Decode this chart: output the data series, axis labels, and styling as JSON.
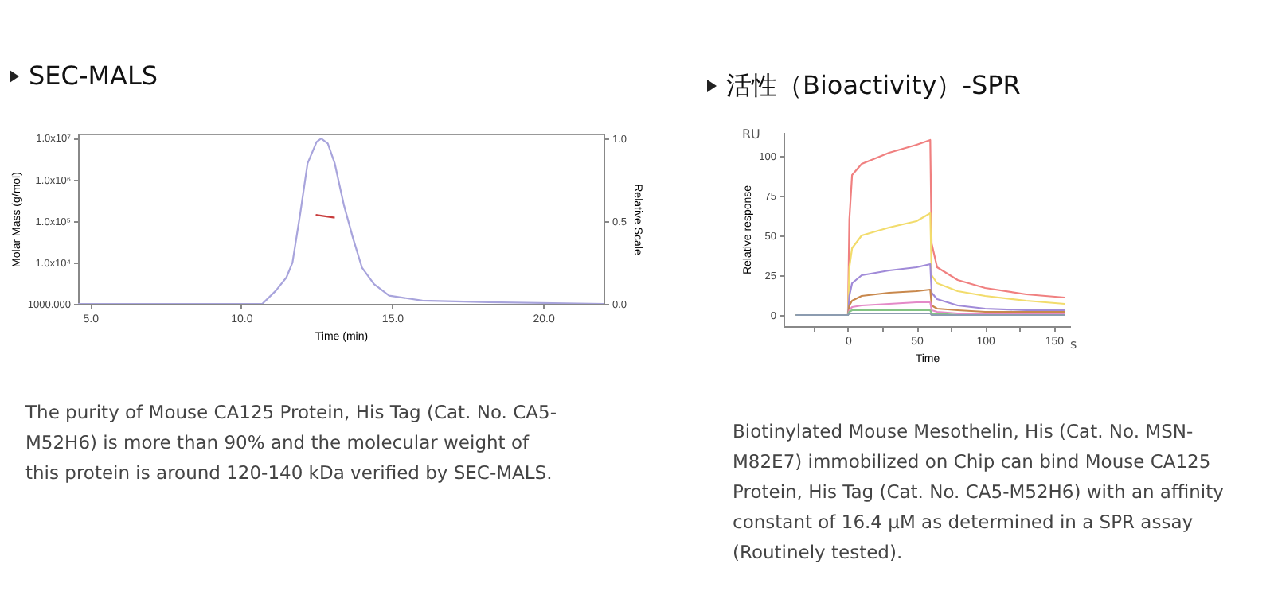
{
  "chart_data": [
    {
      "type": "line",
      "title": "SEC-MALS",
      "xlabel": "Time (min)",
      "ylabel": "Molar Mass (g/mol)",
      "y2label": "Relative Scale",
      "log": "y",
      "grid": false,
      "xlim": [
        4.6,
        22
      ],
      "xticks": [
        {
          "value": 5,
          "label": "5.0"
        },
        {
          "value": 10,
          "label": "10.0"
        },
        {
          "value": 15,
          "label": "15.0"
        },
        {
          "value": 20,
          "label": "20.0"
        }
      ],
      "ylim": [
        1000,
        12700000
      ],
      "yticks": [
        {
          "value": 1000,
          "label": "1000.000"
        },
        {
          "value": 10000,
          "label": "1.0x10⁴"
        },
        {
          "value": 100000,
          "label": "1.0x10⁵"
        },
        {
          "value": 1000000,
          "label": "1.0x10⁶"
        },
        {
          "value": 10000000,
          "label": "1.0x10⁷"
        }
      ],
      "y2lim": [
        0,
        1.03
      ],
      "y2ticks": [
        {
          "value": 0,
          "label": "0.0"
        },
        {
          "value": 0.5,
          "label": "0.5"
        },
        {
          "value": 1,
          "label": "1.0"
        }
      ],
      "series": [
        {
          "color": "#c83c3c",
          "x": [
            12.47,
            13.1
          ],
          "values": [
            140000,
            120000
          ]
        },
        {
          "color": "#a8a4dc",
          "axis": "y2",
          "x": [
            4.6,
            10.7,
            11.15,
            11.5,
            11.7,
            11.96,
            12.2,
            12.5,
            12.65,
            12.87,
            13.1,
            13.4,
            13.7,
            14.0,
            14.4,
            14.9,
            16.0,
            18.2,
            22
          ],
          "values": [
            0,
            0,
            0.08,
            0.16,
            0.25,
            0.55,
            0.85,
            0.98,
            1.0,
            0.97,
            0.85,
            0.6,
            0.4,
            0.22,
            0.12,
            0.05,
            0.02,
            0.01,
            0
          ]
        }
      ],
      "annotations": [
        "The purity of Mouse CA125 Protein, His Tag (Cat. No. CA5-M52H6) is more than 90% and the molecular weight of this protein is around 120-140 kDa verified by SEC-MALS."
      ]
    },
    {
      "type": "line",
      "title": "活性（Bioactivity）-SPR",
      "xlabel": "Time",
      "ylabel": "Relative response",
      "grid": false,
      "xlim": [
        -47,
        162
      ],
      "xticks": [
        {
          "value": -25,
          "label": null
        },
        0,
        {
          "value": 25,
          "label": null
        },
        50,
        {
          "value": 75,
          "label": null
        },
        100,
        {
          "value": 125,
          "label": null
        },
        150
      ],
      "ylim": [
        -7,
        115
      ],
      "yticks": [
        0,
        25,
        50,
        75,
        100
      ],
      "x": [
        -38,
        0,
        1,
        3,
        10,
        30,
        50,
        60,
        61,
        65,
        80,
        100,
        130,
        158
      ],
      "series": [
        {
          "color": "#f08080",
          "values": [
            0,
            0,
            60,
            88,
            95,
            102,
            107,
            110,
            45,
            30,
            22,
            17,
            13,
            11
          ]
        },
        {
          "color": "#f2dc6c",
          "values": [
            0,
            0,
            30,
            42,
            50,
            55,
            59,
            64,
            25,
            20,
            15,
            12,
            9,
            7
          ]
        },
        {
          "color": "#a08ad8",
          "values": [
            0,
            0,
            12,
            20,
            25,
            28,
            30,
            32,
            14,
            10,
            6,
            4,
            3,
            3
          ]
        },
        {
          "color": "#c8884c",
          "values": [
            0,
            0,
            6,
            9,
            12,
            14,
            15,
            16,
            6,
            4,
            3,
            2,
            2,
            2
          ]
        },
        {
          "color": "#e48ac8",
          "values": [
            0,
            0,
            3,
            5,
            6,
            7,
            8,
            8,
            3,
            2,
            1,
            1,
            1,
            1
          ]
        },
        {
          "color": "#84c484",
          "values": [
            0,
            0,
            2,
            3,
            3,
            3,
            3,
            3,
            1,
            1,
            0,
            0,
            null,
            null
          ]
        },
        {
          "color": "#8c9cb0",
          "values": [
            0,
            0,
            1,
            1,
            1,
            1,
            1,
            1,
            0,
            0,
            0,
            0,
            0,
            0
          ]
        }
      ],
      "annotations": [
        "RU",
        "s",
        "Biotinylated Mouse Mesothelin, His (Cat. No. MSN-M82E7) immobilized on Chip can bind Mouse CA125 Protein, His Tag (Cat. No. CA5-M52H6) with an affinity constant of 16.4 μM as determined in a SPR assay (Routinely tested)."
      ]
    }
  ]
}
